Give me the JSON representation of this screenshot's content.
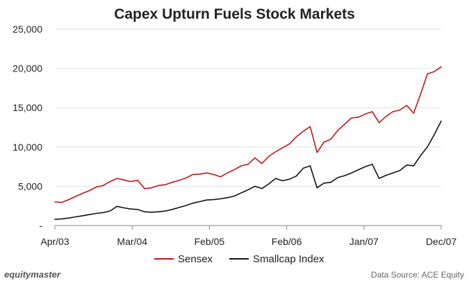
{
  "brand": "equitymaster",
  "source_note": "Data Source: ACE Equity",
  "colors": {
    "sensex": "#c0151b",
    "smallcap": "#111111",
    "axis": "#9a9a9a",
    "grid": "#e2e2e2"
  },
  "chart_data": {
    "type": "line",
    "title": "Capex Upturn Fuels Stock Markets",
    "xlabel": "",
    "ylabel": "",
    "x_ticks": [
      "Apr/03",
      "Mar/04",
      "Feb/05",
      "Feb/06",
      "Jan/07",
      "Dec/07"
    ],
    "y_ticks": [
      "-",
      "5,000",
      "10,000",
      "15,000",
      "20,000",
      "25,000"
    ],
    "ylim": [
      0,
      25000
    ],
    "grid": "horizontal",
    "legend_position": "bottom",
    "series": [
      {
        "name": "Sensex",
        "color": "#c0151b",
        "points": [
          [
            "2003-04",
            3000
          ],
          [
            "2003-05",
            2950
          ],
          [
            "2003-06",
            3300
          ],
          [
            "2003-07",
            3700
          ],
          [
            "2003-08",
            4100
          ],
          [
            "2003-09",
            4450
          ],
          [
            "2003-10",
            4900
          ],
          [
            "2003-11",
            5100
          ],
          [
            "2003-12",
            5600
          ],
          [
            "2004-01",
            6000
          ],
          [
            "2004-02",
            5800
          ],
          [
            "2004-03",
            5600
          ],
          [
            "2004-04",
            5750
          ],
          [
            "2004-05",
            4700
          ],
          [
            "2004-06",
            4800
          ],
          [
            "2004-07",
            5100
          ],
          [
            "2004-08",
            5200
          ],
          [
            "2004-09",
            5500
          ],
          [
            "2004-10",
            5750
          ],
          [
            "2004-11",
            6050
          ],
          [
            "2004-12",
            6500
          ],
          [
            "2005-01",
            6550
          ],
          [
            "2005-02",
            6700
          ],
          [
            "2005-03",
            6500
          ],
          [
            "2005-04",
            6200
          ],
          [
            "2005-05",
            6700
          ],
          [
            "2005-06",
            7100
          ],
          [
            "2005-07",
            7600
          ],
          [
            "2005-08",
            7800
          ],
          [
            "2005-09",
            8600
          ],
          [
            "2005-10",
            7900
          ],
          [
            "2005-11",
            8800
          ],
          [
            "2005-12",
            9400
          ],
          [
            "2006-01",
            9900
          ],
          [
            "2006-02",
            10400
          ],
          [
            "2006-03",
            11300
          ],
          [
            "2006-04",
            12000
          ],
          [
            "2006-05",
            12600
          ],
          [
            "2006-06",
            9300
          ],
          [
            "2006-07",
            10600
          ],
          [
            "2006-08",
            11000
          ],
          [
            "2006-09",
            12100
          ],
          [
            "2006-10",
            12900
          ],
          [
            "2006-11",
            13700
          ],
          [
            "2006-12",
            13800
          ],
          [
            "2007-01",
            14200
          ],
          [
            "2007-02",
            14500
          ],
          [
            "2007-03",
            13100
          ],
          [
            "2007-04",
            13900
          ],
          [
            "2007-05",
            14500
          ],
          [
            "2007-06",
            14700
          ],
          [
            "2007-07",
            15300
          ],
          [
            "2007-08",
            14300
          ],
          [
            "2007-09",
            16700
          ],
          [
            "2007-10",
            19300
          ],
          [
            "2007-11",
            19600
          ],
          [
            "2007-12",
            20200
          ]
        ]
      },
      {
        "name": "Smallcap Index",
        "color": "#111111",
        "points": [
          [
            "2003-04",
            800
          ],
          [
            "2003-05",
            850
          ],
          [
            "2003-06",
            950
          ],
          [
            "2003-07",
            1100
          ],
          [
            "2003-08",
            1250
          ],
          [
            "2003-09",
            1400
          ],
          [
            "2003-10",
            1550
          ],
          [
            "2003-11",
            1650
          ],
          [
            "2003-12",
            1850
          ],
          [
            "2004-01",
            2450
          ],
          [
            "2004-02",
            2250
          ],
          [
            "2004-03",
            2100
          ],
          [
            "2004-04",
            2050
          ],
          [
            "2004-05",
            1750
          ],
          [
            "2004-06",
            1700
          ],
          [
            "2004-07",
            1750
          ],
          [
            "2004-08",
            1850
          ],
          [
            "2004-09",
            2050
          ],
          [
            "2004-10",
            2300
          ],
          [
            "2004-11",
            2550
          ],
          [
            "2004-12",
            2850
          ],
          [
            "2005-01",
            3050
          ],
          [
            "2005-02",
            3250
          ],
          [
            "2005-03",
            3300
          ],
          [
            "2005-04",
            3400
          ],
          [
            "2005-05",
            3550
          ],
          [
            "2005-06",
            3750
          ],
          [
            "2005-07",
            4150
          ],
          [
            "2005-08",
            4550
          ],
          [
            "2005-09",
            5000
          ],
          [
            "2005-10",
            4700
          ],
          [
            "2005-11",
            5300
          ],
          [
            "2005-12",
            6000
          ],
          [
            "2006-01",
            5700
          ],
          [
            "2006-02",
            5900
          ],
          [
            "2006-03",
            6300
          ],
          [
            "2006-04",
            7300
          ],
          [
            "2006-05",
            7600
          ],
          [
            "2006-06",
            4800
          ],
          [
            "2006-07",
            5400
          ],
          [
            "2006-08",
            5500
          ],
          [
            "2006-09",
            6100
          ],
          [
            "2006-10",
            6350
          ],
          [
            "2006-11",
            6700
          ],
          [
            "2006-12",
            7100
          ],
          [
            "2007-01",
            7500
          ],
          [
            "2007-02",
            7800
          ],
          [
            "2007-03",
            6000
          ],
          [
            "2007-04",
            6400
          ],
          [
            "2007-05",
            6700
          ],
          [
            "2007-06",
            7000
          ],
          [
            "2007-07",
            7700
          ],
          [
            "2007-08",
            7600
          ],
          [
            "2007-09",
            8900
          ],
          [
            "2007-10",
            10000
          ],
          [
            "2007-11",
            11600
          ],
          [
            "2007-12",
            13300
          ]
        ]
      }
    ]
  }
}
